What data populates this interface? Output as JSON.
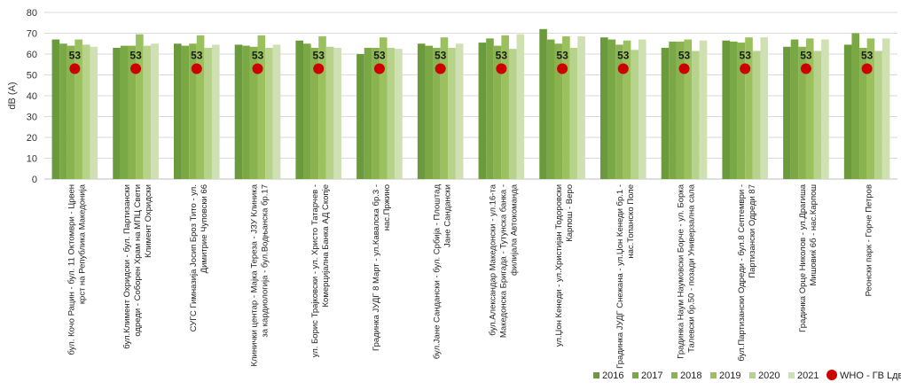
{
  "chart_data": {
    "type": "bar",
    "title": "",
    "xlabel": "",
    "ylabel": "dB (A)",
    "ylim": [
      0,
      80
    ],
    "yticks": [
      0,
      10,
      20,
      30,
      40,
      50,
      60,
      70,
      80
    ],
    "grid": true,
    "legend_position": "bottom-right",
    "categories": [
      [
        "бул. Кочо Рацин - бул. 11 Октомври - Црвен",
        "крст на Република Македонија"
      ],
      [
        "бул.Климент Охридски - бул. Партизански",
        "одреди - Соборен Храм на МПЦ Свети",
        "Климент Охридски"
      ],
      [
        "СУГС Гимназија Јосип Броз Тито - ул.",
        "Димитрие Чуповски 66"
      ],
      [
        "Клинички центар - Мајка Тереза - ЈЗУ Клиника",
        "за кардиологија - бул.Водњанска бр.17"
      ],
      [
        "ул. Борис Трајковски - ул. Христо Татарчев -",
        "Комерцијална Банка АД Скопје"
      ],
      [
        "Градинка ЈУДГ 8 Март - ул.Кавалска бр.3 -",
        "нас.Пржино"
      ],
      [
        "бул.Јане Сандански - бул. Србија - Плоштад",
        "Јане Сандански"
      ],
      [
        "бул.Александар Македонски - ул.16-та",
        "Македонска Бригада - Тутунска банка -",
        "филијала Автокоманда"
      ],
      [
        "ул.Џон Кенеди - ул.Христијан Тодоровски",
        "Карпош - Веро"
      ],
      [
        "Градинка ЈУДГ Снежана - ул.Џон Кенеди бр.1 -",
        "нас.Топанско Поле"
      ],
      [
        "Градинка Наум Наумовски Борче - ул. Борка",
        "Талевски бр.50 - позади Универзална сала"
      ],
      [
        "бул.Партизански Одреди - бул.8 Септември -",
        "Партизански Одреди 87"
      ],
      [
        "Градинка Орце Николов - ул.Драгиша",
        "Мишовиќ 6б - нас.Карпош"
      ],
      [
        "Реонски парк - Горче Петров"
      ]
    ],
    "series": [
      {
        "name": "2016",
        "color": "#6b9a3d",
        "values": [
          67,
          63,
          65,
          64.5,
          66.5,
          60,
          65,
          65.5,
          72,
          68,
          63,
          66.5,
          63.5,
          64.5
        ]
      },
      {
        "name": "2017",
        "color": "#7aa844",
        "values": [
          65,
          64,
          64,
          64,
          65,
          63,
          64,
          67.5,
          67,
          67,
          66,
          66,
          67,
          70
        ]
      },
      {
        "name": "2018",
        "color": "#8ab350",
        "values": [
          64,
          64,
          65,
          63.5,
          63,
          63,
          63,
          64,
          65,
          64.5,
          66,
          65.5,
          63.5,
          63
        ]
      },
      {
        "name": "2019",
        "color": "#9bc15e",
        "values": [
          67,
          69.5,
          69,
          69,
          68.5,
          68,
          68,
          69,
          68.5,
          66.5,
          67,
          68,
          67.5,
          67.5
        ]
      },
      {
        "name": "2020",
        "color": "#b7d28b",
        "values": [
          64.5,
          64,
          63,
          63,
          63.5,
          63,
          63,
          62.5,
          63,
          62,
          61.5,
          61.5,
          61.5,
          61.5
        ]
      },
      {
        "name": "2021",
        "color": "#cfe0b2",
        "values": [
          63.5,
          65,
          64.5,
          64.5,
          63,
          62.5,
          65,
          69.5,
          68.5,
          67,
          66.5,
          68,
          67,
          67.5
        ]
      }
    ],
    "reference": {
      "name": "WHO - ГВ Lдвн dB(A)",
      "color": "#cc0000",
      "values": [
        53,
        53,
        53,
        53,
        53,
        53,
        53,
        53,
        53,
        53,
        53,
        53,
        53,
        53
      ]
    }
  }
}
